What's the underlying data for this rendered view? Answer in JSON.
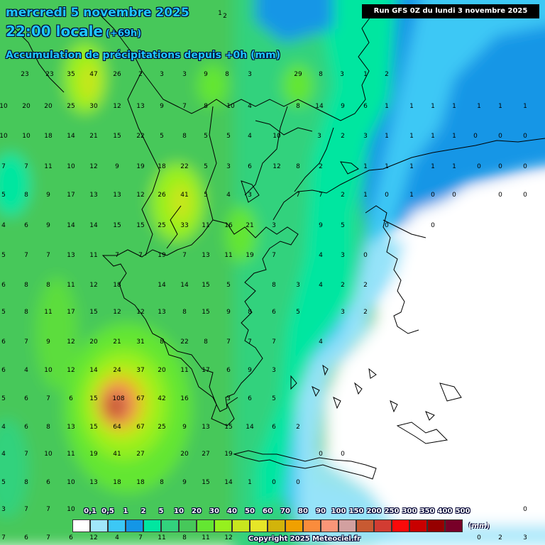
{
  "header": {
    "date_line": "mercredi 5 novembre 2025",
    "time_line": "22:00 locale",
    "offset": "(+69h)",
    "variable": "Accumulation de précipitations depuis +0h (mm)"
  },
  "run_info": "Run GFS 0Z du lundi 3 novembre 2025",
  "copyright": "Copyright 2025 Meteociel.fr",
  "legend": {
    "unit": "(mm)",
    "thresholds": [
      "0,1",
      "0,5",
      "1",
      "2",
      "5",
      "10",
      "20",
      "30",
      "40",
      "50",
      "60",
      "70",
      "80",
      "90",
      "100",
      "150",
      "200",
      "250",
      "300",
      "350",
      "400",
      "500"
    ],
    "colors": [
      "#ffffff",
      "#a0e6fa",
      "#3cc8f5",
      "#1496e6",
      "#00e6a0",
      "#32d27d",
      "#46c85a",
      "#64e632",
      "#96f01e",
      "#c8e61e",
      "#e6e628",
      "#d2b40a",
      "#f0a000",
      "#fa8c3c",
      "#fa9678",
      "#d2a0a0",
      "#c85a32",
      "#d23c32",
      "#fa0a0a",
      "#c80000",
      "#960000",
      "#780028",
      "#a00064",
      "#8c64f0"
    ]
  },
  "map_values": [
    [
      10,
      3,
      "1",
      [
        0,
        "#5c9",
        "#2b6"
      ]
    ],
    [
      17,
      7,
      "2",
      [
        0,
        "#5c9"
      ]
    ],
    [
      35,
      105,
      "23"
    ],
    [
      70,
      105,
      "23"
    ],
    [
      100,
      105,
      "35"
    ],
    [
      132,
      105,
      "47"
    ],
    [
      165,
      105,
      "26"
    ],
    [
      198,
      105,
      "2"
    ],
    [
      228,
      105,
      "3"
    ],
    [
      260,
      105,
      "3"
    ],
    [
      290,
      105,
      "9"
    ],
    [
      320,
      105,
      "8"
    ],
    [
      352,
      105,
      "3"
    ],
    [
      420,
      105,
      "29"
    ],
    [
      452,
      105,
      "8"
    ],
    [
      482,
      105,
      "3"
    ],
    [
      515,
      105,
      "1"
    ],
    [
      545,
      105,
      "2"
    ],
    [
      5,
      150,
      "10"
    ],
    [
      37,
      150,
      "20"
    ],
    [
      68,
      150,
      "20"
    ],
    [
      100,
      150,
      "25"
    ],
    [
      132,
      150,
      "30"
    ],
    [
      165,
      150,
      "12"
    ],
    [
      198,
      150,
      "13"
    ],
    [
      228,
      150,
      "9"
    ],
    [
      260,
      150,
      "7"
    ],
    [
      290,
      150,
      "8"
    ],
    [
      325,
      150,
      "10"
    ],
    [
      352,
      150,
      "4"
    ],
    [
      420,
      150,
      "8"
    ],
    [
      450,
      150,
      "14"
    ],
    [
      483,
      150,
      "9"
    ],
    [
      515,
      150,
      "6"
    ],
    [
      545,
      150,
      "1"
    ],
    [
      580,
      150,
      "1"
    ],
    [
      610,
      150,
      "1"
    ],
    [
      640,
      150,
      "1"
    ],
    [
      675,
      150,
      "1"
    ],
    [
      705,
      150,
      "1"
    ],
    [
      740,
      150,
      "1"
    ],
    [
      5,
      192,
      "10"
    ],
    [
      37,
      192,
      "10"
    ],
    [
      68,
      192,
      "18"
    ],
    [
      100,
      192,
      "14"
    ],
    [
      132,
      192,
      "21"
    ],
    [
      165,
      192,
      "15"
    ],
    [
      198,
      192,
      "22"
    ],
    [
      228,
      192,
      "5"
    ],
    [
      260,
      192,
      "8"
    ],
    [
      290,
      192,
      "5"
    ],
    [
      322,
      192,
      "5"
    ],
    [
      352,
      192,
      "4"
    ],
    [
      390,
      192,
      "10"
    ],
    [
      450,
      192,
      "3"
    ],
    [
      483,
      192,
      "2"
    ],
    [
      515,
      192,
      "3"
    ],
    [
      545,
      192,
      "1"
    ],
    [
      580,
      192,
      "1"
    ],
    [
      610,
      192,
      "1"
    ],
    [
      640,
      192,
      "1"
    ],
    [
      670,
      192,
      "0"
    ],
    [
      705,
      192,
      "0"
    ],
    [
      740,
      192,
      "0"
    ],
    [
      5,
      235,
      "7"
    ],
    [
      37,
      235,
      "7"
    ],
    [
      68,
      235,
      "11"
    ],
    [
      100,
      235,
      "10"
    ],
    [
      132,
      235,
      "12"
    ],
    [
      165,
      235,
      "9"
    ],
    [
      198,
      235,
      "19"
    ],
    [
      228,
      235,
      "18"
    ],
    [
      260,
      235,
      "22"
    ],
    [
      290,
      235,
      "5"
    ],
    [
      322,
      235,
      "3"
    ],
    [
      352,
      235,
      "6"
    ],
    [
      390,
      235,
      "12"
    ],
    [
      420,
      235,
      "8"
    ],
    [
      452,
      235,
      "2"
    ],
    [
      515,
      235,
      "1"
    ],
    [
      545,
      235,
      "1"
    ],
    [
      580,
      235,
      "1"
    ],
    [
      610,
      235,
      "1"
    ],
    [
      640,
      235,
      "1"
    ],
    [
      675,
      235,
      "0"
    ],
    [
      705,
      235,
      "0"
    ],
    [
      740,
      235,
      "0"
    ],
    [
      5,
      275,
      "5"
    ],
    [
      37,
      275,
      "8"
    ],
    [
      68,
      275,
      "9"
    ],
    [
      100,
      275,
      "17"
    ],
    [
      132,
      275,
      "13"
    ],
    [
      165,
      275,
      "13"
    ],
    [
      198,
      275,
      "12"
    ],
    [
      228,
      275,
      "26"
    ],
    [
      260,
      275,
      "41"
    ],
    [
      290,
      275,
      "5"
    ],
    [
      322,
      275,
      "4"
    ],
    [
      352,
      275,
      "3"
    ],
    [
      420,
      275,
      "7"
    ],
    [
      452,
      275,
      "7"
    ],
    [
      483,
      275,
      "2"
    ],
    [
      515,
      275,
      "1"
    ],
    [
      545,
      275,
      "0"
    ],
    [
      580,
      275,
      "1"
    ],
    [
      610,
      275,
      "0"
    ],
    [
      640,
      275,
      "0"
    ],
    [
      705,
      275,
      "0"
    ],
    [
      740,
      275,
      "0"
    ],
    [
      5,
      318,
      "4"
    ],
    [
      37,
      318,
      "6"
    ],
    [
      68,
      318,
      "9"
    ],
    [
      100,
      318,
      "14"
    ],
    [
      132,
      318,
      "14"
    ],
    [
      165,
      318,
      "15"
    ],
    [
      198,
      318,
      "15"
    ],
    [
      228,
      318,
      "25"
    ],
    [
      260,
      318,
      "33"
    ],
    [
      290,
      318,
      "11"
    ],
    [
      322,
      318,
      "16"
    ],
    [
      352,
      318,
      "21"
    ],
    [
      386,
      318,
      "3"
    ],
    [
      452,
      318,
      "9"
    ],
    [
      483,
      318,
      "5"
    ],
    [
      545,
      318,
      "0"
    ],
    [
      610,
      318,
      "0"
    ],
    [
      5,
      360,
      "5"
    ],
    [
      37,
      360,
      "7"
    ],
    [
      68,
      360,
      "7"
    ],
    [
      100,
      360,
      "13"
    ],
    [
      132,
      360,
      "11"
    ],
    [
      165,
      360,
      "7"
    ],
    [
      198,
      360,
      "7"
    ],
    [
      228,
      360,
      "19"
    ],
    [
      260,
      360,
      "7"
    ],
    [
      290,
      360,
      "13"
    ],
    [
      322,
      360,
      "11"
    ],
    [
      352,
      360,
      "19"
    ],
    [
      386,
      360,
      "7"
    ],
    [
      452,
      360,
      "4"
    ],
    [
      483,
      360,
      "3"
    ],
    [
      515,
      360,
      "0"
    ],
    [
      5,
      402,
      "6"
    ],
    [
      37,
      402,
      "8"
    ],
    [
      68,
      402,
      "8"
    ],
    [
      100,
      402,
      "11"
    ],
    [
      132,
      402,
      "12"
    ],
    [
      165,
      402,
      "18"
    ],
    [
      228,
      402,
      "14"
    ],
    [
      260,
      402,
      "14"
    ],
    [
      290,
      402,
      "15"
    ],
    [
      322,
      402,
      "5"
    ],
    [
      386,
      402,
      "8"
    ],
    [
      420,
      402,
      "3"
    ],
    [
      452,
      402,
      "4"
    ],
    [
      483,
      402,
      "2"
    ],
    [
      515,
      402,
      "2"
    ],
    [
      5,
      440,
      "5"
    ],
    [
      37,
      440,
      "8"
    ],
    [
      68,
      440,
      "11"
    ],
    [
      100,
      440,
      "17"
    ],
    [
      132,
      440,
      "15"
    ],
    [
      165,
      440,
      "12"
    ],
    [
      198,
      440,
      "12"
    ],
    [
      228,
      440,
      "13"
    ],
    [
      260,
      440,
      "8"
    ],
    [
      290,
      440,
      "15"
    ],
    [
      322,
      440,
      "9"
    ],
    [
      352,
      440,
      "8"
    ],
    [
      386,
      440,
      "6"
    ],
    [
      420,
      440,
      "5"
    ],
    [
      483,
      440,
      "3"
    ],
    [
      515,
      440,
      "2"
    ],
    [
      5,
      482,
      "6"
    ],
    [
      37,
      482,
      "7"
    ],
    [
      68,
      482,
      "9"
    ],
    [
      100,
      482,
      "12"
    ],
    [
      132,
      482,
      "20"
    ],
    [
      165,
      482,
      "21"
    ],
    [
      198,
      482,
      "31"
    ],
    [
      228,
      482,
      "8"
    ],
    [
      260,
      482,
      "22"
    ],
    [
      290,
      482,
      "8"
    ],
    [
      322,
      482,
      "7"
    ],
    [
      352,
      482,
      "7"
    ],
    [
      386,
      482,
      "7"
    ],
    [
      452,
      482,
      "4"
    ],
    [
      5,
      522,
      "6"
    ],
    [
      37,
      522,
      "4"
    ],
    [
      68,
      522,
      "10"
    ],
    [
      100,
      522,
      "12"
    ],
    [
      132,
      522,
      "14"
    ],
    [
      165,
      522,
      "24"
    ],
    [
      198,
      522,
      "37"
    ],
    [
      228,
      522,
      "20"
    ],
    [
      260,
      522,
      "11"
    ],
    [
      290,
      522,
      "17"
    ],
    [
      322,
      522,
      "6"
    ],
    [
      352,
      522,
      "9"
    ],
    [
      386,
      522,
      "3"
    ],
    [
      5,
      562,
      "5"
    ],
    [
      37,
      562,
      "6"
    ],
    [
      68,
      562,
      "7"
    ],
    [
      100,
      562,
      "6"
    ],
    [
      132,
      562,
      "15"
    ],
    [
      167,
      562,
      "108"
    ],
    [
      198,
      562,
      "67"
    ],
    [
      228,
      562,
      "42"
    ],
    [
      260,
      562,
      "16"
    ],
    [
      322,
      562,
      "3"
    ],
    [
      352,
      562,
      "6"
    ],
    [
      386,
      562,
      "5"
    ],
    [
      5,
      602,
      "4"
    ],
    [
      37,
      602,
      "6"
    ],
    [
      68,
      602,
      "8"
    ],
    [
      100,
      602,
      "13"
    ],
    [
      132,
      602,
      "15"
    ],
    [
      165,
      602,
      "64"
    ],
    [
      198,
      602,
      "67"
    ],
    [
      228,
      602,
      "25"
    ],
    [
      260,
      602,
      "9"
    ],
    [
      290,
      602,
      "13"
    ],
    [
      322,
      602,
      "15"
    ],
    [
      352,
      602,
      "14"
    ],
    [
      386,
      602,
      "6"
    ],
    [
      420,
      602,
      "2"
    ],
    [
      5,
      640,
      "4"
    ],
    [
      37,
      640,
      "7"
    ],
    [
      68,
      640,
      "10"
    ],
    [
      100,
      640,
      "11"
    ],
    [
      132,
      640,
      "19"
    ],
    [
      165,
      640,
      "41"
    ],
    [
      198,
      640,
      "27"
    ],
    [
      260,
      640,
      "20"
    ],
    [
      290,
      640,
      "27"
    ],
    [
      322,
      640,
      "19"
    ],
    [
      452,
      640,
      "0"
    ],
    [
      483,
      640,
      "0"
    ],
    [
      5,
      680,
      "5"
    ],
    [
      37,
      680,
      "8"
    ],
    [
      68,
      680,
      "6"
    ],
    [
      100,
      680,
      "10"
    ],
    [
      132,
      680,
      "13"
    ],
    [
      165,
      680,
      "18"
    ],
    [
      198,
      680,
      "18"
    ],
    [
      228,
      680,
      "8"
    ],
    [
      260,
      680,
      "9"
    ],
    [
      290,
      680,
      "15"
    ],
    [
      322,
      680,
      "14"
    ],
    [
      352,
      680,
      "1"
    ],
    [
      386,
      680,
      "0"
    ],
    [
      420,
      680,
      "0"
    ],
    [
      5,
      718,
      "3"
    ],
    [
      37,
      718,
      "7"
    ],
    [
      68,
      718,
      "7"
    ],
    [
      100,
      718,
      "10"
    ],
    [
      740,
      718,
      "0"
    ],
    [
      5,
      758,
      "7"
    ],
    [
      37,
      758,
      "6"
    ],
    [
      68,
      758,
      "7"
    ],
    [
      100,
      758,
      "6"
    ],
    [
      132,
      758,
      "12"
    ],
    [
      165,
      758,
      "4"
    ],
    [
      198,
      758,
      "7"
    ],
    [
      228,
      758,
      "11"
    ],
    [
      260,
      758,
      "8"
    ],
    [
      290,
      758,
      "11"
    ],
    [
      322,
      758,
      "12"
    ],
    [
      675,
      758,
      "0"
    ],
    [
      705,
      758,
      "2"
    ],
    [
      740,
      758,
      "3"
    ]
  ]
}
